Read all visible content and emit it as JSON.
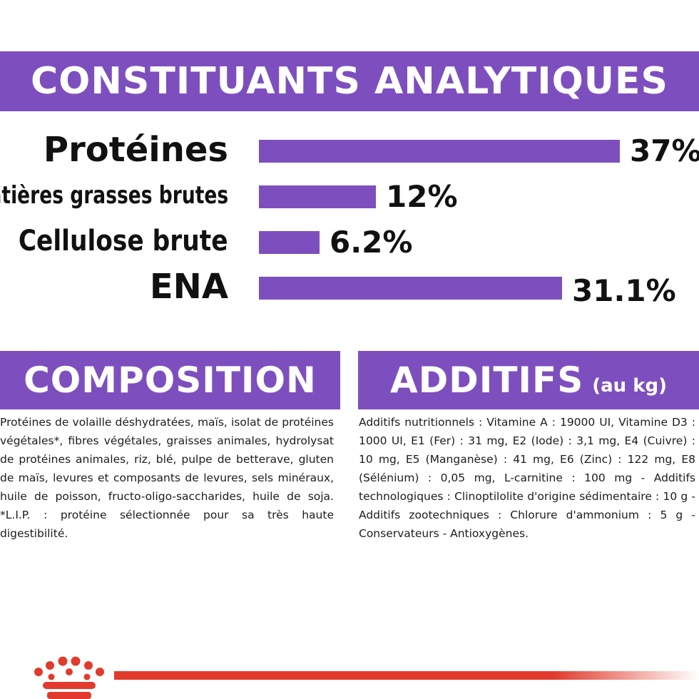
{
  "headings": {
    "analytics": "CONSTITUANTS ANALYTIQUES",
    "composition": "COMPOSITION",
    "additifs": "ADDITIFS",
    "additifs_suffix": "(au kg)"
  },
  "chart_data": {
    "type": "bar",
    "orientation": "horizontal",
    "title": "CONSTITUANTS ANALYTIQUES",
    "categories": [
      "Protéines",
      "Matières grasses brutes",
      "Cellulose brute",
      "ENA"
    ],
    "values": [
      37,
      12,
      6.2,
      31.1
    ],
    "value_labels": [
      "37%",
      "12%",
      "6.2%",
      "31.1%"
    ],
    "unit": "%",
    "xlim": [
      0,
      37
    ],
    "grid": false,
    "legend": "none",
    "bar_color": "#7d4fbe"
  },
  "composition_text": "Protéines de volaille déshydratées, maïs, isolat de protéines végétales*, fibres végétales, graisses animales, hydrolysat de protéines animales, riz, blé, pulpe de betterave, gluten de maïs, levures et composants de levures, sels minéraux, huile de poisson, fructo-oligo-saccharides, huile de soja. *L.I.P. : protéine sélectionnée pour sa très haute digestibilité.",
  "additifs_text": "Additifs nutritionnels : Vitamine A : 19000 UI, Vitamine D3 : 1000 UI, E1 (Fer) : 31 mg, E2 (Iode) : 3,1 mg, E4 (Cuivre) : 10 mg, E5 (Manganèse) : 41 mg, E6 (Zinc) : 122 mg, E8 (Sélénium) : 0,05 mg, L-carnitine : 100 mg - Additifs technologiques : Clinoptilolite d'origine sédimentaire : 10 g - Additifs zootechniques : Chlorure d'ammonium : 5 g - Conservateurs - Antioxygènes.",
  "colors": {
    "brand_purple": "#7d4fbe",
    "brand_red": "#e23a2c"
  },
  "icons": {
    "footer_logo": "crown-icon"
  }
}
